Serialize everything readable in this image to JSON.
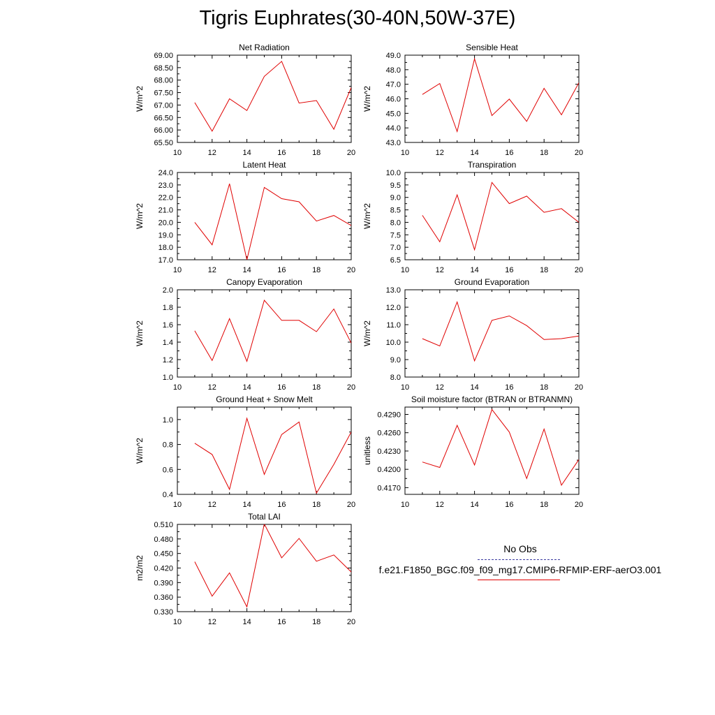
{
  "title": "Tigris Euphrates(30-40N,50W-37E)",
  "legend": {
    "obs_label": "No Obs",
    "obs_color": "#3a3aa0",
    "case_label": "f.e21.F1850_BGC.f09_f09_mg17.CMIP6-RFMIP-ERF-aerO3.001",
    "case_color": "#e00000"
  },
  "chart_data": [
    {
      "type": "line",
      "title": "Net Radiation",
      "ylabel": "W/m^2",
      "xlim": [
        10,
        20
      ],
      "ylim": [
        65.5,
        69.0
      ],
      "xticks": [
        10,
        12,
        14,
        16,
        18,
        20
      ],
      "yticks": [
        "65.50",
        "66.00",
        "66.50",
        "67.00",
        "67.50",
        "68.00",
        "68.50",
        "69.00"
      ],
      "x": [
        11,
        12,
        13,
        14,
        15,
        16,
        17,
        18,
        19,
        20
      ],
      "y": [
        67.1,
        65.95,
        67.25,
        66.78,
        68.15,
        68.75,
        67.08,
        67.18,
        66.03,
        67.7
      ],
      "grid": false
    },
    {
      "type": "line",
      "title": "Sensible Heat",
      "ylabel": "W/m^2",
      "xlim": [
        10,
        20
      ],
      "ylim": [
        43.0,
        49.0
      ],
      "xticks": [
        10,
        12,
        14,
        16,
        18,
        20
      ],
      "yticks": [
        "43.0",
        "44.0",
        "45.0",
        "46.0",
        "47.0",
        "48.0",
        "49.0"
      ],
      "x": [
        11,
        12,
        13,
        14,
        15,
        16,
        17,
        18,
        19,
        20
      ],
      "y": [
        46.3,
        47.05,
        43.75,
        48.75,
        44.85,
        45.98,
        44.45,
        46.72,
        44.9,
        47.1
      ],
      "grid": false
    },
    {
      "type": "line",
      "title": "Latent Heat",
      "ylabel": "W/m^2",
      "xlim": [
        10,
        20
      ],
      "ylim": [
        17.0,
        24.0
      ],
      "xticks": [
        10,
        12,
        14,
        16,
        18,
        20
      ],
      "yticks": [
        "17.0",
        "18.0",
        "19.0",
        "20.0",
        "21.0",
        "22.0",
        "23.0",
        "24.0"
      ],
      "x": [
        11,
        12,
        13,
        14,
        15,
        16,
        17,
        18,
        19,
        20
      ],
      "y": [
        20.0,
        18.2,
        23.1,
        17.0,
        22.8,
        21.9,
        21.65,
        20.1,
        20.55,
        19.75
      ],
      "grid": false
    },
    {
      "type": "line",
      "title": "Transpiration",
      "ylabel": "W/m^2",
      "xlim": [
        10,
        20
      ],
      "ylim": [
        6.5,
        10.0
      ],
      "xticks": [
        10,
        12,
        14,
        16,
        18,
        20
      ],
      "yticks": [
        "6.5",
        "7.0",
        "7.5",
        "8.0",
        "8.5",
        "9.0",
        "9.5",
        "10.0"
      ],
      "x": [
        11,
        12,
        13,
        14,
        15,
        16,
        17,
        18,
        19,
        20
      ],
      "y": [
        8.28,
        7.22,
        9.1,
        6.9,
        9.6,
        8.75,
        9.05,
        8.4,
        8.55,
        8.0
      ],
      "grid": false
    },
    {
      "type": "line",
      "title": "Canopy Evaporation",
      "ylabel": "W/m^2",
      "xlim": [
        10,
        20
      ],
      "ylim": [
        1.0,
        2.0
      ],
      "xticks": [
        10,
        12,
        14,
        16,
        18,
        20
      ],
      "yticks": [
        "1.0",
        "1.2",
        "1.4",
        "1.6",
        "1.8",
        "2.0"
      ],
      "x": [
        11,
        12,
        13,
        14,
        15,
        16,
        17,
        18,
        19,
        20
      ],
      "y": [
        1.53,
        1.19,
        1.67,
        1.18,
        1.88,
        1.65,
        1.65,
        1.52,
        1.78,
        1.39
      ],
      "grid": false
    },
    {
      "type": "line",
      "title": "Ground Evaporation",
      "ylabel": "W/m^2",
      "xlim": [
        10,
        20
      ],
      "ylim": [
        8.0,
        13.0
      ],
      "xticks": [
        10,
        12,
        14,
        16,
        18,
        20
      ],
      "yticks": [
        "8.0",
        "9.0",
        "10.0",
        "11.0",
        "12.0",
        "13.0"
      ],
      "x": [
        11,
        12,
        13,
        14,
        15,
        16,
        17,
        18,
        19,
        20
      ],
      "y": [
        10.2,
        9.78,
        12.3,
        8.93,
        11.25,
        11.5,
        10.95,
        10.15,
        10.2,
        10.35
      ],
      "grid": false
    },
    {
      "type": "line",
      "title": "Ground Heat + Snow Melt",
      "ylabel": "W/m^2",
      "xlim": [
        10,
        20
      ],
      "ylim": [
        0.4,
        1.1
      ],
      "xticks": [
        10,
        12,
        14,
        16,
        18,
        20
      ],
      "yticks": [
        "0.4",
        "0.6",
        "0.8",
        "1.0"
      ],
      "x": [
        11,
        12,
        13,
        14,
        15,
        16,
        17,
        18,
        19,
        20
      ],
      "y": [
        0.81,
        0.72,
        0.44,
        1.01,
        0.56,
        0.88,
        0.98,
        0.41,
        0.64,
        0.9
      ],
      "grid": false
    },
    {
      "type": "line",
      "title": "Soil moisture factor (BTRAN or BTRANMN)",
      "ylabel": "unitless",
      "xlim": [
        10,
        20
      ],
      "ylim": [
        0.4159,
        0.4302
      ],
      "xticks": [
        10,
        12,
        14,
        16,
        18,
        20
      ],
      "yticks": [
        "0.4170",
        "0.4200",
        "0.4230",
        "0.4260",
        "0.4290"
      ],
      "x": [
        11,
        12,
        13,
        14,
        15,
        16,
        17,
        18,
        19,
        20
      ],
      "y": [
        0.4212,
        0.4203,
        0.4272,
        0.4207,
        0.4298,
        0.4261,
        0.4185,
        0.4266,
        0.4174,
        0.4216
      ],
      "grid": false
    },
    {
      "type": "line",
      "title": "Total LAI",
      "ylabel": "m2/m2",
      "xlim": [
        10,
        20
      ],
      "ylim": [
        0.33,
        0.51
      ],
      "xticks": [
        10,
        12,
        14,
        16,
        18,
        20
      ],
      "yticks": [
        "0.330",
        "0.360",
        "0.390",
        "0.420",
        "0.450",
        "0.480",
        "0.510"
      ],
      "x": [
        11,
        12,
        13,
        14,
        15,
        16,
        17,
        18,
        19,
        20
      ],
      "y": [
        0.433,
        0.362,
        0.41,
        0.34,
        0.511,
        0.441,
        0.481,
        0.434,
        0.447,
        0.412
      ],
      "grid": false
    }
  ]
}
